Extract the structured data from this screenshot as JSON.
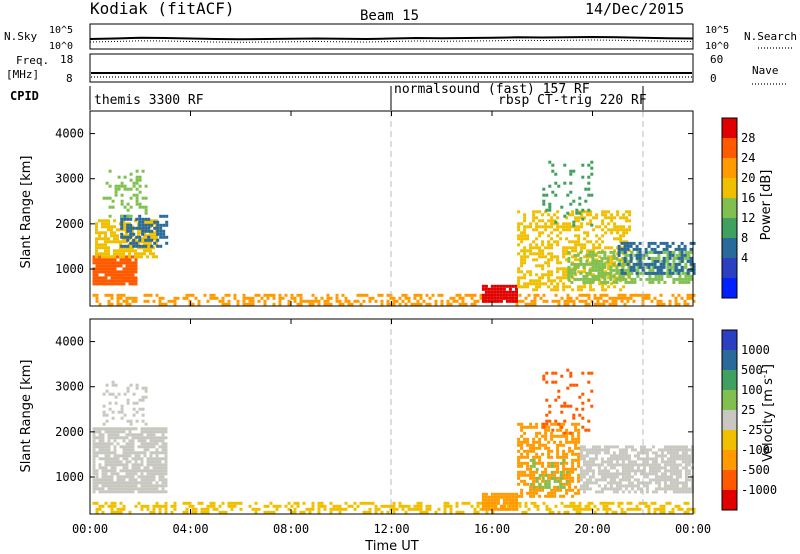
{
  "header": {
    "site": "Kodiak (fitACF)",
    "beam": "Beam 15",
    "date": "14/Dec/2015"
  },
  "chart_data": [
    {
      "type": "line",
      "panel": "noise",
      "left_label": "N.Sky",
      "right_label": "N.Search",
      "left_ticks": [
        "10^5",
        "10^0"
      ],
      "right_ticks": [
        "10^5",
        "10^0"
      ],
      "x": [
        0,
        1,
        2,
        3,
        4,
        5,
        6,
        7,
        8,
        9,
        10,
        11,
        12,
        13,
        14,
        15,
        16,
        17,
        18,
        19,
        20,
        21,
        22,
        23,
        24
      ],
      "series": [
        {
          "values": [
            0.4,
            0.42,
            0.45,
            0.44,
            0.42,
            0.4,
            0.39,
            0.4,
            0.41,
            0.42,
            0.41,
            0.4,
            0.42,
            0.44,
            0.43,
            0.44,
            0.45,
            0.47,
            0.46,
            0.47,
            0.48,
            0.47,
            0.45,
            0.43,
            0.42
          ]
        }
      ]
    },
    {
      "type": "line",
      "panel": "frequency",
      "left_label_top": "Freq.",
      "left_label_units": "[MHz]",
      "right_label": "Nave",
      "left_ticks": [
        "18",
        "8"
      ],
      "right_ticks": [
        "60",
        "0"
      ],
      "x": [
        0,
        24
      ],
      "series": [
        {
          "values": [
            0.3,
            0.3
          ]
        }
      ]
    },
    {
      "type": "table",
      "panel": "cpid",
      "label": "CPID",
      "programs": [
        {
          "name": "themis 3300 RF",
          "start": 0,
          "end": 12
        },
        {
          "name": "normalsound (fast) 157 RF",
          "start": 12,
          "end": 22
        },
        {
          "name": "rbsp CT-trig 220 RF",
          "start": 22,
          "end": 24
        }
      ]
    },
    {
      "type": "heatmap",
      "panel": "power",
      "ylabel": "Slant Range [km]",
      "y_ticks": [
        1000,
        2000,
        3000,
        4000
      ],
      "ylim": [
        180,
        4500
      ],
      "xlim": [
        0,
        24
      ],
      "colorbar": {
        "label": "Power [dB]",
        "ticks": [
          "28",
          "24",
          "20",
          "16",
          "12",
          "8",
          "4"
        ],
        "colors": [
          "#e00000",
          "#ff5a00",
          "#ff9a00",
          "#f0c000",
          "#80c050",
          "#40a060",
          "#2a6a9a",
          "#2a40c0",
          "#0020ff"
        ]
      },
      "regions": [
        {
          "t0": 0.1,
          "t1": 1.8,
          "r0": 700,
          "r1": 1300,
          "color": "#ff5a00",
          "density": 0.9
        },
        {
          "t0": 0.2,
          "t1": 2.6,
          "r0": 1300,
          "r1": 2100,
          "color": "#f0c000",
          "density": 0.7
        },
        {
          "t0": 1.2,
          "t1": 3.1,
          "r0": 1500,
          "r1": 2200,
          "color": "#2a6a9a",
          "density": 0.55
        },
        {
          "t0": 0.5,
          "t1": 2.2,
          "r0": 2200,
          "r1": 3200,
          "color": "#80c050",
          "density": 0.25
        },
        {
          "t0": 0.1,
          "t1": 24.0,
          "r0": 200,
          "r1": 450,
          "color": "#ff9a00",
          "density": 0.45
        },
        {
          "t0": 15.6,
          "t1": 17.0,
          "r0": 280,
          "r1": 650,
          "color": "#e00000",
          "density": 0.95
        },
        {
          "t0": 17.0,
          "t1": 21.5,
          "r0": 550,
          "r1": 2300,
          "color": "#f0c000",
          "density": 0.5
        },
        {
          "t0": 19.0,
          "t1": 24.0,
          "r0": 700,
          "r1": 1400,
          "color": "#80c050",
          "density": 0.6
        },
        {
          "t0": 21.0,
          "t1": 24.0,
          "r0": 900,
          "r1": 1600,
          "color": "#2a6a9a",
          "density": 0.5
        },
        {
          "t0": 18.0,
          "t1": 20.0,
          "r0": 2000,
          "r1": 3400,
          "color": "#40a060",
          "density": 0.15
        }
      ]
    },
    {
      "type": "heatmap",
      "panel": "velocity",
      "ylabel": "Slant Range [km]",
      "y_ticks": [
        1000,
        2000,
        3000,
        4000
      ],
      "ylim": [
        180,
        4500
      ],
      "xlim": [
        0,
        24
      ],
      "x_ticks": [
        "00:00",
        "04:00",
        "08:00",
        "12:00",
        "16:00",
        "20:00",
        "00:00"
      ],
      "xlabel": "Time UT",
      "colorbar": {
        "label": "Velocity [m s-1]",
        "ticks": [
          "1000",
          "500",
          "100",
          "25",
          "-25",
          "-100",
          "-500",
          "-1000"
        ],
        "colors": [
          "#2a40c0",
          "#2a6a9a",
          "#40a060",
          "#80c050",
          "#c8c8c0",
          "#f0c000",
          "#ff9a00",
          "#ff5a00",
          "#e00000"
        ]
      },
      "regions": [
        {
          "t0": 0.1,
          "t1": 3.0,
          "r0": 700,
          "r1": 2100,
          "color": "#c8c8c0",
          "density": 0.8
        },
        {
          "t0": 0.5,
          "t1": 2.2,
          "r0": 2200,
          "r1": 3200,
          "color": "#c8c8c0",
          "density": 0.25
        },
        {
          "t0": 0.1,
          "t1": 24.0,
          "r0": 200,
          "r1": 450,
          "color": "#f0c000",
          "density": 0.45
        },
        {
          "t0": 15.6,
          "t1": 17.0,
          "r0": 280,
          "r1": 650,
          "color": "#ff9a00",
          "density": 0.95
        },
        {
          "t0": 17.0,
          "t1": 19.5,
          "r0": 600,
          "r1": 2200,
          "color": "#ff9a00",
          "density": 0.55
        },
        {
          "t0": 19.5,
          "t1": 24.0,
          "r0": 700,
          "r1": 1700,
          "color": "#c8c8c0",
          "density": 0.7
        },
        {
          "t0": 18.0,
          "t1": 20.0,
          "r0": 2000,
          "r1": 3400,
          "color": "#ff5a00",
          "density": 0.15
        },
        {
          "t0": 17.5,
          "t1": 19.0,
          "r0": 800,
          "r1": 1400,
          "color": "#80c050",
          "density": 0.3
        }
      ]
    }
  ]
}
